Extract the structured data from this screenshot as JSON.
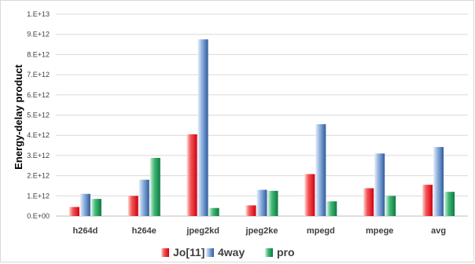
{
  "chart_data": {
    "type": "bar",
    "title": "",
    "xlabel": "",
    "ylabel": "Energy-delay product",
    "ylim": [
      0,
      10000000000000.0
    ],
    "yticks": [
      0,
      1000000000000.0,
      2000000000000.0,
      3000000000000.0,
      4000000000000.0,
      5000000000000.0,
      6000000000000.0,
      7000000000000.0,
      8000000000000.0,
      9000000000000.0,
      10000000000000.0
    ],
    "ytick_labels": [
      "0.E+00",
      "1.E+12",
      "2.E+12",
      "3.E+12",
      "4.E+12",
      "5.E+12",
      "6.E+12",
      "7.E+12",
      "8.E+12",
      "9.E+12",
      "1.E+13"
    ],
    "grid": true,
    "legend_position": "bottom",
    "categories": [
      "h264d",
      "h264e",
      "jpeg2kd",
      "jpeg2ke",
      "mpegd",
      "mpege",
      "avg"
    ],
    "series": [
      {
        "name": "Jo[11]",
        "color": "#e8141b",
        "values": [
          450000000000.0,
          1000000000000.0,
          4050000000000.0,
          530000000000.0,
          2080000000000.0,
          1380000000000.0,
          1550000000000.0
        ]
      },
      {
        "name": "4way",
        "color": "#3e6fb2",
        "values": [
          1100000000000.0,
          1800000000000.0,
          8750000000000.0,
          1300000000000.0,
          4550000000000.0,
          3100000000000.0,
          3420000000000.0
        ]
      },
      {
        "name": "pro",
        "color": "#1a9650",
        "values": [
          850000000000.0,
          2880000000000.0,
          400000000000.0,
          1250000000000.0,
          730000000000.0,
          1000000000000.0,
          1200000000000.0
        ]
      }
    ]
  }
}
